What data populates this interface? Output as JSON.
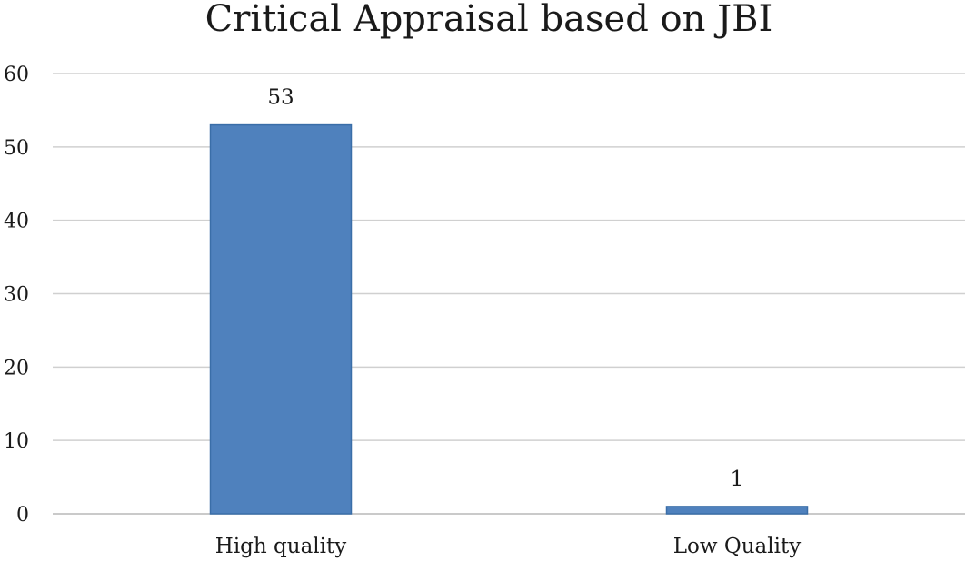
{
  "chart_data": {
    "type": "bar",
    "title": "Critical Appraisal based on JBI",
    "categories": [
      "High quality",
      "Low Quality"
    ],
    "values": [
      53,
      1
    ],
    "data_labels": [
      "53",
      "1"
    ],
    "xlabel": "",
    "ylabel": "",
    "ylim": [
      0,
      60
    ],
    "yticks": [
      0,
      10,
      20,
      30,
      40,
      50,
      60
    ],
    "ytick_labels": [
      "0",
      "10",
      "20",
      "30",
      "40",
      "50",
      "60"
    ],
    "grid": true,
    "legend": "none",
    "bar_color": "#4f81bd",
    "bar_edge_color": "#3a6ea8"
  }
}
